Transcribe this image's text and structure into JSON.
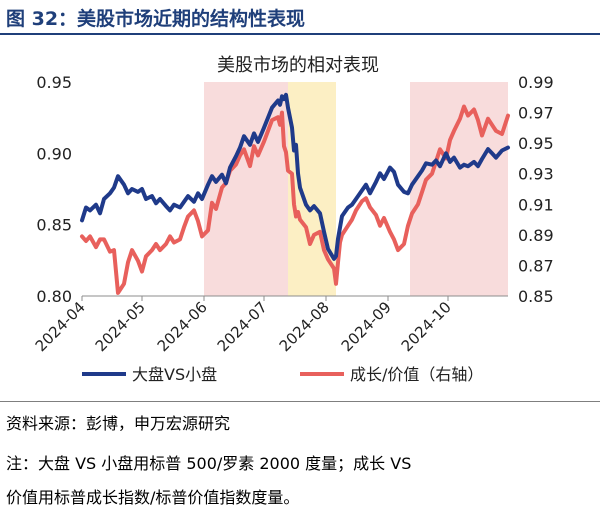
{
  "header": {
    "title": "图 32：美股市场近期的结构性表现"
  },
  "footer": {
    "source": "资料来源：彭博，申万宏源研究",
    "note_line1": "注：大盘 VS 小盘用标普 500/罗素 2000 度量；成长 VS",
    "note_line2": "价值用标普成长指数/标普价值指数度量。"
  },
  "colors": {
    "title": "#1f3f7a",
    "series_left": "#1f3a8a",
    "series_right": "#e8605c",
    "shade_pink": "#f8dcdc",
    "shade_yellow": "#fcefc4"
  },
  "chart_data": {
    "type": "line",
    "title": "美股市场的相对表现",
    "x_tick_labels": [
      "2024-04",
      "2024-05",
      "2024-06",
      "2024-07",
      "2024-08",
      "2024-09",
      "2024-10"
    ],
    "x_range": [
      "2024-04-01",
      "2024-10-31"
    ],
    "y_left": {
      "range": [
        0.8,
        0.95
      ],
      "ticks": [
        "0.80",
        "0.85",
        "0.90",
        "0.95"
      ]
    },
    "y_right": {
      "range": [
        0.85,
        0.99
      ],
      "ticks": [
        "0.85",
        "0.87",
        "0.89",
        "0.91",
        "0.93",
        "0.95",
        "0.97",
        "0.99"
      ]
    },
    "shaded_regions": [
      {
        "from": "2024-06-01",
        "to": "2024-07-13",
        "color": "pink"
      },
      {
        "from": "2024-07-13",
        "to": "2024-08-06",
        "color": "yellow"
      },
      {
        "from": "2024-09-12",
        "to": "2024-10-31",
        "color": "pink"
      }
    ],
    "series": [
      {
        "name": "大盘VS小盘",
        "axis": "left",
        "points": [
          [
            "2024-04-01",
            0.853
          ],
          [
            "2024-04-03",
            0.862
          ],
          [
            "2024-04-05",
            0.86
          ],
          [
            "2024-04-08",
            0.864
          ],
          [
            "2024-04-10",
            0.858
          ],
          [
            "2024-04-12",
            0.868
          ],
          [
            "2024-04-15",
            0.872
          ],
          [
            "2024-04-17",
            0.876
          ],
          [
            "2024-04-19",
            0.884
          ],
          [
            "2024-04-22",
            0.878
          ],
          [
            "2024-04-24",
            0.872
          ],
          [
            "2024-04-26",
            0.875
          ],
          [
            "2024-04-29",
            0.873
          ],
          [
            "2024-05-01",
            0.875
          ],
          [
            "2024-05-03",
            0.868
          ],
          [
            "2024-05-06",
            0.87
          ],
          [
            "2024-05-08",
            0.865
          ],
          [
            "2024-05-10",
            0.868
          ],
          [
            "2024-05-13",
            0.863
          ],
          [
            "2024-05-15",
            0.86
          ],
          [
            "2024-05-17",
            0.864
          ],
          [
            "2024-05-20",
            0.862
          ],
          [
            "2024-05-22",
            0.866
          ],
          [
            "2024-05-24",
            0.87
          ],
          [
            "2024-05-27",
            0.866
          ],
          [
            "2024-05-29",
            0.872
          ],
          [
            "2024-05-31",
            0.868
          ],
          [
            "2024-06-03",
            0.878
          ],
          [
            "2024-06-05",
            0.884
          ],
          [
            "2024-06-07",
            0.88
          ],
          [
            "2024-06-10",
            0.885
          ],
          [
            "2024-06-12",
            0.879
          ],
          [
            "2024-06-14",
            0.89
          ],
          [
            "2024-06-17",
            0.898
          ],
          [
            "2024-06-19",
            0.904
          ],
          [
            "2024-06-21",
            0.912
          ],
          [
            "2024-06-24",
            0.906
          ],
          [
            "2024-06-26",
            0.914
          ],
          [
            "2024-06-28",
            0.908
          ],
          [
            "2024-07-01",
            0.918
          ],
          [
            "2024-07-03",
            0.925
          ],
          [
            "2024-07-05",
            0.932
          ],
          [
            "2024-07-08",
            0.937
          ],
          [
            "2024-07-09",
            0.934
          ],
          [
            "2024-07-10",
            0.94
          ],
          [
            "2024-07-11",
            0.938
          ],
          [
            "2024-07-12",
            0.941
          ],
          [
            "2024-07-13",
            0.932
          ],
          [
            "2024-07-15",
            0.918
          ],
          [
            "2024-07-16",
            0.902
          ],
          [
            "2024-07-17",
            0.906
          ],
          [
            "2024-07-18",
            0.886
          ],
          [
            "2024-07-19",
            0.876
          ],
          [
            "2024-07-22",
            0.864
          ],
          [
            "2024-07-24",
            0.86
          ],
          [
            "2024-07-26",
            0.863
          ],
          [
            "2024-07-29",
            0.858
          ],
          [
            "2024-07-31",
            0.845
          ],
          [
            "2024-08-02",
            0.833
          ],
          [
            "2024-08-05",
            0.826
          ],
          [
            "2024-08-06",
            0.828
          ],
          [
            "2024-08-07",
            0.84
          ],
          [
            "2024-08-08",
            0.848
          ],
          [
            "2024-08-09",
            0.856
          ],
          [
            "2024-08-12",
            0.862
          ],
          [
            "2024-08-14",
            0.864
          ],
          [
            "2024-08-16",
            0.868
          ],
          [
            "2024-08-19",
            0.874
          ],
          [
            "2024-08-21",
            0.878
          ],
          [
            "2024-08-23",
            0.872
          ],
          [
            "2024-08-26",
            0.88
          ],
          [
            "2024-08-28",
            0.886
          ],
          [
            "2024-08-30",
            0.882
          ],
          [
            "2024-09-02",
            0.89
          ],
          [
            "2024-09-04",
            0.887
          ],
          [
            "2024-09-06",
            0.878
          ],
          [
            "2024-09-09",
            0.873
          ],
          [
            "2024-09-11",
            0.872
          ],
          [
            "2024-09-13",
            0.878
          ],
          [
            "2024-09-16",
            0.884
          ],
          [
            "2024-09-18",
            0.888
          ],
          [
            "2024-09-20",
            0.893
          ],
          [
            "2024-09-23",
            0.892
          ],
          [
            "2024-09-25",
            0.895
          ],
          [
            "2024-09-27",
            0.891
          ],
          [
            "2024-09-30",
            0.9
          ],
          [
            "2024-10-02",
            0.894
          ],
          [
            "2024-10-04",
            0.897
          ],
          [
            "2024-10-07",
            0.89
          ],
          [
            "2024-10-09",
            0.892
          ],
          [
            "2024-10-11",
            0.891
          ],
          [
            "2024-10-14",
            0.894
          ],
          [
            "2024-10-16",
            0.891
          ],
          [
            "2024-10-18",
            0.896
          ],
          [
            "2024-10-21",
            0.903
          ],
          [
            "2024-10-23",
            0.9
          ],
          [
            "2024-10-25",
            0.897
          ],
          [
            "2024-10-28",
            0.902
          ],
          [
            "2024-10-31",
            0.904
          ]
        ]
      },
      {
        "name": "成长/价值（右轴）",
        "axis": "right",
        "points": [
          [
            "2024-04-01",
            0.889
          ],
          [
            "2024-04-03",
            0.886
          ],
          [
            "2024-04-05",
            0.889
          ],
          [
            "2024-04-08",
            0.882
          ],
          [
            "2024-04-10",
            0.887
          ],
          [
            "2024-04-12",
            0.887
          ],
          [
            "2024-04-15",
            0.879
          ],
          [
            "2024-04-17",
            0.88
          ],
          [
            "2024-04-19",
            0.852
          ],
          [
            "2024-04-22",
            0.858
          ],
          [
            "2024-04-24",
            0.872
          ],
          [
            "2024-04-26",
            0.88
          ],
          [
            "2024-04-29",
            0.873
          ],
          [
            "2024-05-01",
            0.866
          ],
          [
            "2024-05-03",
            0.876
          ],
          [
            "2024-05-06",
            0.88
          ],
          [
            "2024-05-08",
            0.884
          ],
          [
            "2024-05-10",
            0.88
          ],
          [
            "2024-05-13",
            0.884
          ],
          [
            "2024-05-15",
            0.889
          ],
          [
            "2024-05-17",
            0.885
          ],
          [
            "2024-05-20",
            0.887
          ],
          [
            "2024-05-22",
            0.895
          ],
          [
            "2024-05-24",
            0.902
          ],
          [
            "2024-05-27",
            0.906
          ],
          [
            "2024-05-29",
            0.899
          ],
          [
            "2024-05-31",
            0.889
          ],
          [
            "2024-06-03",
            0.893
          ],
          [
            "2024-06-05",
            0.911
          ],
          [
            "2024-06-07",
            0.907
          ],
          [
            "2024-06-10",
            0.921
          ],
          [
            "2024-06-12",
            0.924
          ],
          [
            "2024-06-14",
            0.932
          ],
          [
            "2024-06-17",
            0.936
          ],
          [
            "2024-06-19",
            0.942
          ],
          [
            "2024-06-21",
            0.946
          ],
          [
            "2024-06-24",
            0.935
          ],
          [
            "2024-06-26",
            0.948
          ],
          [
            "2024-06-28",
            0.942
          ],
          [
            "2024-07-01",
            0.951
          ],
          [
            "2024-07-03",
            0.958
          ],
          [
            "2024-07-05",
            0.965
          ],
          [
            "2024-07-08",
            0.967
          ],
          [
            "2024-07-09",
            0.962
          ],
          [
            "2024-07-10",
            0.97
          ],
          [
            "2024-07-11",
            0.948
          ],
          [
            "2024-07-12",
            0.944
          ],
          [
            "2024-07-13",
            0.932
          ],
          [
            "2024-07-15",
            0.93
          ],
          [
            "2024-07-16",
            0.91
          ],
          [
            "2024-07-17",
            0.902
          ],
          [
            "2024-07-18",
            0.905
          ],
          [
            "2024-07-19",
            0.9
          ],
          [
            "2024-07-22",
            0.895
          ],
          [
            "2024-07-24",
            0.884
          ],
          [
            "2024-07-26",
            0.89
          ],
          [
            "2024-07-29",
            0.892
          ],
          [
            "2024-07-31",
            0.88
          ],
          [
            "2024-08-02",
            0.874
          ],
          [
            "2024-08-05",
            0.868
          ],
          [
            "2024-08-06",
            0.858
          ],
          [
            "2024-08-07",
            0.872
          ],
          [
            "2024-08-08",
            0.885
          ],
          [
            "2024-08-09",
            0.89
          ],
          [
            "2024-08-12",
            0.896
          ],
          [
            "2024-08-14",
            0.9
          ],
          [
            "2024-08-16",
            0.906
          ],
          [
            "2024-08-19",
            0.912
          ],
          [
            "2024-08-21",
            0.914
          ],
          [
            "2024-08-23",
            0.908
          ],
          [
            "2024-08-26",
            0.903
          ],
          [
            "2024-08-28",
            0.896
          ],
          [
            "2024-08-30",
            0.901
          ],
          [
            "2024-09-02",
            0.892
          ],
          [
            "2024-09-04",
            0.887
          ],
          [
            "2024-09-06",
            0.88
          ],
          [
            "2024-09-09",
            0.884
          ],
          [
            "2024-09-11",
            0.896
          ],
          [
            "2024-09-13",
            0.904
          ],
          [
            "2024-09-16",
            0.91
          ],
          [
            "2024-09-18",
            0.918
          ],
          [
            "2024-09-20",
            0.926
          ],
          [
            "2024-09-23",
            0.93
          ],
          [
            "2024-09-25",
            0.938
          ],
          [
            "2024-09-27",
            0.946
          ],
          [
            "2024-09-30",
            0.94
          ],
          [
            "2024-10-02",
            0.952
          ],
          [
            "2024-10-04",
            0.958
          ],
          [
            "2024-10-07",
            0.966
          ],
          [
            "2024-10-09",
            0.974
          ],
          [
            "2024-10-11",
            0.968
          ],
          [
            "2024-10-14",
            0.972
          ],
          [
            "2024-10-16",
            0.965
          ],
          [
            "2024-10-18",
            0.955
          ],
          [
            "2024-10-21",
            0.966
          ],
          [
            "2024-10-23",
            0.962
          ],
          [
            "2024-10-25",
            0.958
          ],
          [
            "2024-10-28",
            0.956
          ],
          [
            "2024-10-31",
            0.968
          ]
        ]
      }
    ]
  }
}
